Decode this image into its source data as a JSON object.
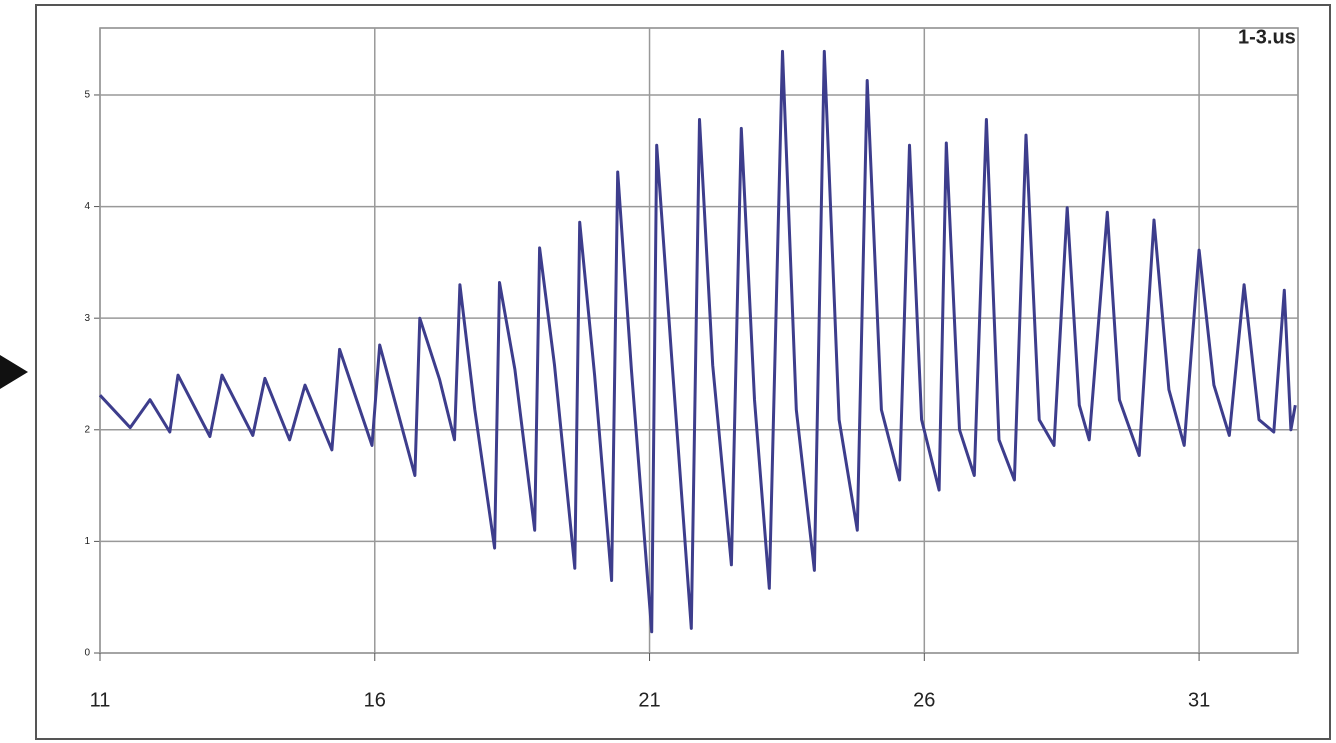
{
  "chart_data": {
    "type": "line",
    "annotation": "1-3.us",
    "color": "#3d3d8c",
    "grid": true,
    "xlim": [
      11,
      32.8
    ],
    "xticks": [
      11,
      16,
      21,
      26,
      31
    ],
    "ylim": [
      0,
      5.6
    ],
    "yticks": [
      0,
      1,
      2,
      3,
      4,
      5
    ],
    "x": [
      11.0,
      11.55,
      11.91,
      12.27,
      12.42,
      13.0,
      13.22,
      13.78,
      14.0,
      14.45,
      14.73,
      15.22,
      15.36,
      15.95,
      16.09,
      16.73,
      16.82,
      17.18,
      17.45,
      17.55,
      17.82,
      18.18,
      18.27,
      18.55,
      18.91,
      19.0,
      19.27,
      19.64,
      19.73,
      20.0,
      20.31,
      20.42,
      20.67,
      21.04,
      21.13,
      21.4,
      21.76,
      21.91,
      22.15,
      22.49,
      22.67,
      22.91,
      23.18,
      23.42,
      23.67,
      24.0,
      24.18,
      24.45,
      24.78,
      24.96,
      25.22,
      25.55,
      25.73,
      25.95,
      26.27,
      26.4,
      26.64,
      26.91,
      27.13,
      27.36,
      27.64,
      27.85,
      28.09,
      28.36,
      28.6,
      28.82,
      29.0,
      29.33,
      29.55,
      29.91,
      30.18,
      30.45,
      30.73,
      31.0,
      31.27,
      31.55,
      31.82,
      32.09,
      32.36,
      32.55,
      32.67,
      32.75
    ],
    "values": [
      2.31,
      2.02,
      2.27,
      1.98,
      2.49,
      1.94,
      2.49,
      1.95,
      2.46,
      1.91,
      2.4,
      1.82,
      2.72,
      1.86,
      2.76,
      1.59,
      3.0,
      2.45,
      1.91,
      3.3,
      2.18,
      0.94,
      3.32,
      2.54,
      1.1,
      3.63,
      2.58,
      0.76,
      3.86,
      2.49,
      0.65,
      4.31,
      2.54,
      0.19,
      4.55,
      2.67,
      0.22,
      4.78,
      2.58,
      0.79,
      4.7,
      2.27,
      0.58,
      5.39,
      2.18,
      0.74,
      5.39,
      2.09,
      1.1,
      5.13,
      2.18,
      1.55,
      4.55,
      2.09,
      1.46,
      4.57,
      2.0,
      1.59,
      4.78,
      1.91,
      1.55,
      4.64,
      2.09,
      1.86,
      3.99,
      2.22,
      1.91,
      3.95,
      2.27,
      1.77,
      3.88,
      2.36,
      1.86,
      3.61,
      2.4,
      1.95,
      3.3,
      2.09,
      1.98,
      3.25,
      2.0,
      2.22
    ]
  }
}
